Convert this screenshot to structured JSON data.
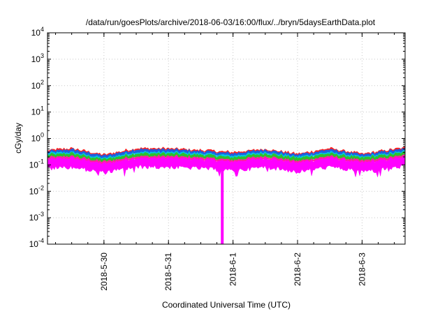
{
  "chart_data": {
    "type": "area",
    "title": "/data/run/goesPlots/archive/2018-06-03/16:00/flux/../bryn/5daysEarthData.plot",
    "xlabel": "Coordinated Universal Time (UTC)",
    "ylabel": "cGy/day",
    "yscale": "log",
    "ylim": [
      0.0001,
      10000
    ],
    "xlim": [
      "2018-05-29 03:00",
      "2018-06-03 16:00"
    ],
    "grid": true,
    "x_ticks": [
      {
        "label": "2018-5-30",
        "date": "2018-05-30"
      },
      {
        "label": "2018-5-31",
        "date": "2018-05-31"
      },
      {
        "label": "2018-6-1",
        "date": "2018-06-01"
      },
      {
        "label": "2018-6-2",
        "date": "2018-06-02"
      },
      {
        "label": "2018-6-3",
        "date": "2018-06-03"
      }
    ],
    "y_ticks": [
      {
        "base": "10",
        "exp": "-4",
        "value": 0.0001
      },
      {
        "base": "10",
        "exp": "-3",
        "value": 0.001
      },
      {
        "base": "10",
        "exp": "-2",
        "value": 0.01
      },
      {
        "base": "10",
        "exp": "-1",
        "value": 0.1
      },
      {
        "base": "10",
        "exp": "0",
        "value": 1
      },
      {
        "base": "10",
        "exp": "1",
        "value": 10
      },
      {
        "base": "10",
        "exp": "2",
        "value": 100
      },
      {
        "base": "10",
        "exp": "3",
        "value": 1000
      },
      {
        "base": "10",
        "exp": "4",
        "value": 10000
      }
    ],
    "x": [
      "2018-05-29 03:00",
      "2018-05-29 12:00",
      "2018-05-30 00:00",
      "2018-05-30 12:00",
      "2018-05-31 00:00",
      "2018-05-31 12:00",
      "2018-06-01 00:00",
      "2018-06-01 12:00",
      "2018-06-02 00:00",
      "2018-06-02 12:00",
      "2018-06-03 00:00",
      "2018-06-03 16:00"
    ],
    "series": [
      {
        "color": "#ff2020",
        "values": [
          0.36,
          0.42,
          0.24,
          0.42,
          0.42,
          0.36,
          0.3,
          0.4,
          0.26,
          0.42,
          0.26,
          0.45
        ]
      },
      {
        "color": "#1e5fe0",
        "values": [
          0.32,
          0.38,
          0.22,
          0.38,
          0.38,
          0.33,
          0.27,
          0.37,
          0.24,
          0.38,
          0.24,
          0.4
        ]
      },
      {
        "color": "#00c8e0",
        "values": [
          0.27,
          0.3,
          0.18,
          0.3,
          0.3,
          0.27,
          0.22,
          0.3,
          0.2,
          0.3,
          0.2,
          0.32
        ]
      },
      {
        "color": "#2ec02e",
        "values": [
          0.24,
          0.27,
          0.16,
          0.27,
          0.27,
          0.24,
          0.19,
          0.27,
          0.18,
          0.27,
          0.18,
          0.29
        ]
      },
      {
        "color": "#ff20a0",
        "values": [
          0.19,
          0.21,
          0.13,
          0.21,
          0.21,
          0.19,
          0.15,
          0.21,
          0.14,
          0.21,
          0.14,
          0.23
        ]
      },
      {
        "color": "#ff00ff",
        "values": [
          0.16,
          0.18,
          0.11,
          0.18,
          0.18,
          0.16,
          0.13,
          0.18,
          0.12,
          0.18,
          0.12,
          0.19
        ]
      }
    ],
    "dropout": {
      "date": "2018-05-31 20:00",
      "value": 0.0001,
      "color": "#ff00ff"
    }
  }
}
